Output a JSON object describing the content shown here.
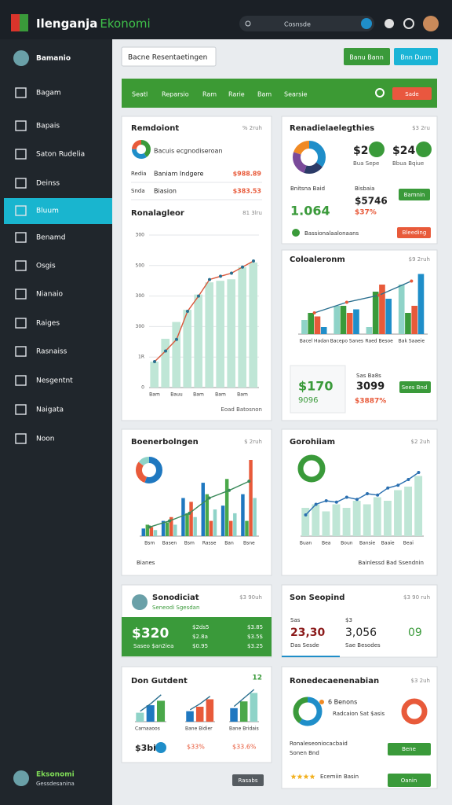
{
  "header": {
    "brand_1": "Ilenganja",
    "brand_2": "Ekonomi",
    "search": "Cosnsde"
  },
  "sidebar": {
    "user": "Bamanio",
    "items": [
      "Bagam",
      "Bapais",
      "Saton Rudelia",
      "Deinss",
      "Bluum",
      "Benamd",
      "Osgis",
      "Nianaio",
      "Raiges",
      "Rasnaiss",
      "Nesgentnt",
      "Naigata",
      "Noon"
    ],
    "active": 4,
    "footer_name": "Eksonomi",
    "footer_sub": "Gessdesanina"
  },
  "toolbar": {
    "input": "Bacne Resentaetingen",
    "button_1": "Banu Bann",
    "button_2": "Bnn Dunn"
  },
  "tabs": {
    "items": [
      "Seatl",
      "Reparsio",
      "Ram",
      "Rarie",
      "Bam",
      "Searsie"
    ],
    "action": "Sade"
  },
  "cards": [
    {
      "title": "Remdoiont",
      "meta": "% 2ruh",
      "note": "Bacuis ecgnodiseroan",
      "rows": [
        {
          "a": "Redia",
          "b": "Baniam Indgere",
          "v": "$988.89"
        },
        {
          "a": "Snda",
          "b": "Biasion",
          "v": "$383.53"
        }
      ],
      "subtitle": "Ronalagleor",
      "submeta": "81 3lru",
      "footer": "Eoad Batosnon",
      "donut": {
        "type": "pie",
        "values": [
          40,
          35,
          25
        ],
        "colors": [
          "#3a9a3a",
          "#1f8ec9",
          "#e85a3a"
        ]
      },
      "chart": {
        "type": "bar_line",
        "categories": [
          "Bam",
          null,
          "Bauu",
          null,
          "Bam",
          null,
          "Bam",
          null,
          "Bam",
          null
        ],
        "ylim": [
          0,
          500
        ],
        "yticks": [
          0,
          {
            "value": 100,
            "label": "1R"
          },
          {
            "value": 200,
            "label": "300"
          },
          300,
          {
            "value": 400,
            "label": "500"
          },
          {
            "value": 500,
            "label": "300"
          }
        ],
        "grid": true,
        "series": [
          {
            "type": "bar",
            "color": "#bfe6d6",
            "values": [
              85,
              160,
              215,
              255,
              305,
              345,
              350,
              355,
              395,
              410
            ]
          },
          {
            "type": "line",
            "color": "#d9563a",
            "marker": "#2a6f8f",
            "values": [
              85,
              120,
              158,
              250,
              300,
              354,
              365,
              375,
              395,
              415
            ]
          }
        ]
      }
    },
    {
      "title": "Renadielaelegthies",
      "meta": "$3 2ru",
      "stat_1": "$2",
      "stat_2": "$24",
      "sub_1": "Bua Sepe",
      "sub_2": "Bbua Bqiue",
      "label_1": "Bnitsna Baid",
      "label_2": "Bisbaia",
      "value_1": "1.064",
      "value_2": "$5746",
      "value_3": "$37%",
      "button": "Bamnin",
      "note": "Bassionalaalonaans",
      "button_2": "Bleeding",
      "donut": {
        "type": "pie",
        "values": [
          35,
          20,
          25,
          20
        ],
        "colors": [
          "#1f8ec9",
          "#2b3a67",
          "#7a4a9a",
          "#f08a24"
        ]
      }
    },
    {
      "title": "Coloaleronm",
      "meta": "$9 2ruh",
      "value_1": "$170",
      "value_2": "3099",
      "value_3": "9096",
      "value_4": "$3887%",
      "label": "Sas Ba8s",
      "button": "Sees Bnd",
      "chart": {
        "type": "bar_line",
        "categories": [
          "Bacel Hadan",
          "Bacepo Sanes",
          "Raed Besoe",
          "Bak Saaeie"
        ],
        "ylim": [
          0,
          100
        ],
        "series": [
          {
            "type": "bar",
            "color": "#8fd3c8",
            "values": [
              20,
              40,
              10,
              70
            ]
          },
          {
            "type": "bar",
            "color": "#3a9a3a",
            "values": [
              30,
              40,
              60,
              30
            ]
          },
          {
            "type": "bar",
            "color": "#e85a3a",
            "values": [
              25,
              30,
              70,
              40
            ]
          },
          {
            "type": "bar",
            "color": "#1f8ec9",
            "values": [
              10,
              35,
              50,
              85
            ]
          },
          {
            "type": "line",
            "color": "#2a6f8f",
            "marker": "#e85a3a",
            "values": [
              30,
              45,
              55,
              75
            ]
          }
        ]
      }
    },
    {
      "title": "Boenerbolngen",
      "meta": "$ 2ruh",
      "footer": "Bianes",
      "donut": {
        "type": "pie",
        "values": [
          55,
          30,
          15
        ],
        "colors": [
          "#1f78c0",
          "#e85a3a",
          "#8fd3c8"
        ]
      },
      "chart": {
        "type": "bar_line",
        "categories": [
          "Bsm",
          "Basen",
          "Bsm",
          "Rasse",
          "Ban",
          "Bsne"
        ],
        "ylim": [
          0,
          100
        ],
        "series": [
          {
            "type": "bar",
            "color": "#1f78c0",
            "values": [
              10,
              20,
              50,
              70,
              40,
              55
            ]
          },
          {
            "type": "bar",
            "color": "#4aa84a",
            "values": [
              15,
              18,
              30,
              55,
              75,
              20
            ]
          },
          {
            "type": "bar",
            "color": "#e85a3a",
            "values": [
              12,
              25,
              45,
              20,
              20,
              100
            ]
          },
          {
            "type": "bar",
            "color": "#8fd3c8",
            "values": [
              8,
              15,
              25,
              35,
              30,
              50
            ]
          },
          {
            "type": "line",
            "color": "#3a8a5a",
            "marker": "#3a8a5a",
            "values": [
              12,
              20,
              30,
              50,
              60,
              72
            ]
          }
        ]
      }
    },
    {
      "title": "Gorohiiam",
      "meta": "$2 2uh",
      "legend": "Bainlessd Bad Ssendnin",
      "chart": {
        "type": "bar_line",
        "categories": [
          "Buan",
          null,
          "Bea",
          null,
          "Boun",
          null,
          "Bansie",
          null,
          "Baaie",
          null,
          "Beai",
          null
        ],
        "ylim": [
          0,
          100
        ],
        "series": [
          {
            "type": "bar",
            "color": "#bfe6d6",
            "values": [
              40,
              45,
              35,
              45,
              40,
              50,
              45,
              55,
              50,
              65,
              70,
              85
            ]
          },
          {
            "type": "line",
            "color": "#2a6fb0",
            "marker": "#2a6fb0",
            "values": [
              30,
              45,
              50,
              48,
              55,
              52,
              60,
              58,
              68,
              72,
              80,
              90
            ]
          }
        ]
      }
    },
    {
      "title": "Sonodiciat",
      "meta": "$3 90uh",
      "sub": "Seneodi Sgesdan",
      "value": "$320",
      "note": "Saseo $an2iea",
      "cols": [
        [
          "$2ds5",
          "$2.8a",
          "$0.95"
        ],
        [
          "$3.85",
          "$3.5$",
          "$3.25"
        ]
      ]
    },
    {
      "title": "Son Seopind",
      "meta": "$3 90 ruh",
      "values": [
        "23,30",
        "3,056",
        "09"
      ],
      "headers": [
        "$3",
        "Sas"
      ],
      "labels": [
        "Das Sesde",
        "Sae Besodes"
      ]
    },
    {
      "title": "Don Gutdent",
      "meta": "12",
      "value": "$3bi",
      "value_2": "$33%",
      "value_3": "$33.6%",
      "minis": [
        {
          "label": "Carnaaoos",
          "type": "bar_line",
          "ylim": [
            0,
            100
          ],
          "series": [
            {
              "type": "bar",
              "colors": [
                "#8fd3c8",
                "#1f78c0",
                "#4aa84a"
              ],
              "values": [
                30,
                55,
                70
              ]
            },
            {
              "type": "line",
              "color": "#2a6f8f",
              "values": [
                35,
                60,
                90
              ]
            }
          ]
        },
        {
          "label": "Bane Bidier",
          "type": "bar_line",
          "ylim": [
            0,
            100
          ],
          "series": [
            {
              "type": "bar",
              "colors": [
                "#1f78c0",
                "#e85a3a",
                "#e85a3a"
              ],
              "values": [
                35,
                50,
                75
              ]
            },
            {
              "type": "line",
              "color": "#2a6f8f",
              "values": [
                40,
                60,
                85
              ]
            }
          ]
        },
        {
          "label": "Bane Bridais",
          "type": "bar_line",
          "ylim": [
            0,
            100
          ],
          "series": [
            {
              "type": "bar",
              "colors": [
                "#1f78c0",
                "#4aa84a",
                "#8fd3c8"
              ],
              "values": [
                40,
                60,
                85
              ]
            },
            {
              "type": "line",
              "color": "#2a6f8f",
              "values": [
                45,
                70,
                95
              ]
            }
          ]
        }
      ]
    },
    {
      "title": "Ronedecaenenabian",
      "meta": "$3 2uh",
      "line_1": "6 Benons",
      "line_2": "Radcaion Sat $asis",
      "note": "Ronaleseoniocacbaid",
      "note_2": "Sonen Bnd",
      "button": "Bene",
      "rating_note": "Ecemiin Basin",
      "button_2": "Oanin",
      "donut": {
        "type": "pie",
        "values": [
          60,
          40
        ],
        "colors": [
          "#1f8ec9",
          "#3a9a3a"
        ]
      }
    }
  ],
  "footer_button": "Rasabs"
}
